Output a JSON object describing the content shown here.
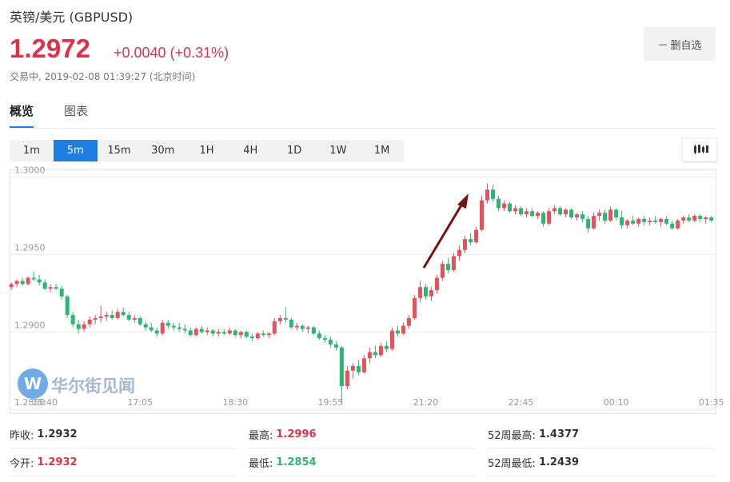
{
  "header": {
    "title": "英镑/美元 (GBPUSD)",
    "price": "1.2972",
    "change": "+0.0040",
    "change_pct": "(+0.31%)",
    "status": "交易中, 2019-02-08 01:39:27 (北京时间)",
    "button": "删自选"
  },
  "tabs": {
    "items": [
      "概览",
      "图表"
    ],
    "active": 0
  },
  "intervals": {
    "items": [
      "1m",
      "5m",
      "15m",
      "30m",
      "1H",
      "4H",
      "1D",
      "1W",
      "1M"
    ],
    "active": 1
  },
  "watermark": "华尔街见闻",
  "chart_data": {
    "type": "candlestick",
    "up_color": "#e8505b",
    "down_color": "#2bb673",
    "grid": true,
    "ylim": [
      1.2847,
      1.3005
    ],
    "yticks": [
      {
        "value": 1.3,
        "label": "1.3000"
      },
      {
        "value": 1.295,
        "label": "1.2950"
      },
      {
        "value": 1.29,
        "label": "1.2900"
      },
      {
        "value": 1.285,
        "label": "1.2850"
      }
    ],
    "xlim": [
      -0.3,
      125.9
    ],
    "xticks": [
      {
        "value": 6,
        "label": "15:40"
      },
      {
        "value": 23,
        "label": "17:05"
      },
      {
        "value": 40,
        "label": "18:30"
      },
      {
        "value": 57,
        "label": "19:55"
      },
      {
        "value": 74,
        "label": "21:20"
      },
      {
        "value": 91,
        "label": "22:45"
      },
      {
        "value": 108,
        "label": "00:10"
      },
      {
        "value": 125,
        "label": "01:35"
      }
    ],
    "ohlc": [
      [
        1.2929,
        1.2932,
        1.2927,
        1.2931
      ],
      [
        1.2931,
        1.2934,
        1.2929,
        1.2933
      ],
      [
        1.2933,
        1.2935,
        1.293,
        1.2931
      ],
      [
        1.2931,
        1.2936,
        1.293,
        1.2935
      ],
      [
        1.2935,
        1.2939,
        1.2933,
        1.2934
      ],
      [
        1.2934,
        1.2937,
        1.293,
        1.2932
      ],
      [
        1.2932,
        1.2934,
        1.2927,
        1.2928
      ],
      [
        1.2928,
        1.2931,
        1.2926,
        1.2929
      ],
      [
        1.2929,
        1.2931,
        1.2927,
        1.2928
      ],
      [
        1.2928,
        1.293,
        1.2921,
        1.2923
      ],
      [
        1.2923,
        1.2924,
        1.2909,
        1.2911
      ],
      [
        1.2911,
        1.2913,
        1.2903,
        1.2905
      ],
      [
        1.2905,
        1.2908,
        1.2899,
        1.2902
      ],
      [
        1.2902,
        1.2907,
        1.29,
        1.2905
      ],
      [
        1.2905,
        1.291,
        1.2903,
        1.2908
      ],
      [
        1.2908,
        1.2911,
        1.2905,
        1.2909
      ],
      [
        1.2909,
        1.2917,
        1.2906,
        1.291
      ],
      [
        1.291,
        1.2913,
        1.2907,
        1.2911
      ],
      [
        1.2911,
        1.2914,
        1.2908,
        1.2909
      ],
      [
        1.2909,
        1.2915,
        1.2908,
        1.2913
      ],
      [
        1.2913,
        1.2916,
        1.291,
        1.2911
      ],
      [
        1.2911,
        1.2913,
        1.2907,
        1.2908
      ],
      [
        1.2908,
        1.2911,
        1.2906,
        1.2909
      ],
      [
        1.2909,
        1.291,
        1.2904,
        1.2905
      ],
      [
        1.2905,
        1.2907,
        1.2901,
        1.2903
      ],
      [
        1.2903,
        1.2906,
        1.29,
        1.2901
      ],
      [
        1.2901,
        1.2903,
        1.2897,
        1.2899
      ],
      [
        1.2899,
        1.2908,
        1.2898,
        1.2906
      ],
      [
        1.2906,
        1.2908,
        1.2902,
        1.2904
      ],
      [
        1.2904,
        1.2906,
        1.2901,
        1.2903
      ],
      [
        1.2903,
        1.2906,
        1.29,
        1.2902
      ],
      [
        1.2902,
        1.2905,
        1.2899,
        1.2901
      ],
      [
        1.2901,
        1.2903,
        1.2897,
        1.2898
      ],
      [
        1.2898,
        1.2903,
        1.2897,
        1.2902
      ],
      [
        1.2902,
        1.2904,
        1.2899,
        1.29
      ],
      [
        1.29,
        1.2903,
        1.2898,
        1.2901
      ],
      [
        1.2901,
        1.2902,
        1.2897,
        1.2899
      ],
      [
        1.2899,
        1.2902,
        1.2897,
        1.29
      ],
      [
        1.29,
        1.2902,
        1.2898,
        1.2899
      ],
      [
        1.2899,
        1.2903,
        1.2898,
        1.2901
      ],
      [
        1.2901,
        1.2902,
        1.2897,
        1.2898
      ],
      [
        1.2898,
        1.2901,
        1.2896,
        1.29
      ],
      [
        1.29,
        1.2901,
        1.2896,
        1.2897
      ],
      [
        1.2897,
        1.2899,
        1.2894,
        1.2896
      ],
      [
        1.2896,
        1.29,
        1.2895,
        1.2899
      ],
      [
        1.2899,
        1.2901,
        1.2897,
        1.2898
      ],
      [
        1.2898,
        1.29,
        1.2896,
        1.2899
      ],
      [
        1.2899,
        1.2909,
        1.2898,
        1.2907
      ],
      [
        1.2907,
        1.2911,
        1.2905,
        1.2909
      ],
      [
        1.2909,
        1.2916,
        1.2906,
        1.2908
      ],
      [
        1.2908,
        1.2909,
        1.2902,
        1.2903
      ],
      [
        1.2903,
        1.2906,
        1.2901,
        1.2904
      ],
      [
        1.2904,
        1.2905,
        1.29,
        1.2902
      ],
      [
        1.2902,
        1.2904,
        1.2899,
        1.2903
      ],
      [
        1.2903,
        1.2904,
        1.2898,
        1.2899
      ],
      [
        1.2899,
        1.2901,
        1.2895,
        1.2896
      ],
      [
        1.2896,
        1.2898,
        1.2893,
        1.2895
      ],
      [
        1.2895,
        1.2897,
        1.289,
        1.2892
      ],
      [
        1.2892,
        1.2894,
        1.2888,
        1.289
      ],
      [
        1.289,
        1.2891,
        1.2854,
        1.2865
      ],
      [
        1.2865,
        1.2878,
        1.2863,
        1.2875
      ],
      [
        1.2875,
        1.288,
        1.287,
        1.2878
      ],
      [
        1.2878,
        1.2882,
        1.2872,
        1.2874
      ],
      [
        1.2874,
        1.2885,
        1.2873,
        1.2883
      ],
      [
        1.2883,
        1.289,
        1.288,
        1.2887
      ],
      [
        1.2887,
        1.2891,
        1.2883,
        1.2885
      ],
      [
        1.2885,
        1.2893,
        1.2884,
        1.2891
      ],
      [
        1.2891,
        1.2894,
        1.2887,
        1.2889
      ],
      [
        1.2889,
        1.2903,
        1.2888,
        1.2901
      ],
      [
        1.2901,
        1.2904,
        1.2897,
        1.2899
      ],
      [
        1.2899,
        1.2906,
        1.2898,
        1.2904
      ],
      [
        1.2904,
        1.2911,
        1.2902,
        1.2909
      ],
      [
        1.2909,
        1.2924,
        1.2908,
        1.2922
      ],
      [
        1.2922,
        1.2933,
        1.2919,
        1.2929
      ],
      [
        1.2929,
        1.2931,
        1.2921,
        1.2923
      ],
      [
        1.2923,
        1.2929,
        1.292,
        1.2927
      ],
      [
        1.2927,
        1.2937,
        1.2925,
        1.2935
      ],
      [
        1.2935,
        1.2946,
        1.2933,
        1.2944
      ],
      [
        1.2944,
        1.2948,
        1.2938,
        1.294
      ],
      [
        1.294,
        1.2951,
        1.2939,
        1.2949
      ],
      [
        1.2949,
        1.2956,
        1.2946,
        1.2953
      ],
      [
        1.2953,
        1.2962,
        1.2951,
        1.296
      ],
      [
        1.296,
        1.2964,
        1.2956,
        1.2958
      ],
      [
        1.2958,
        1.2968,
        1.2957,
        1.2966
      ],
      [
        1.2966,
        1.2988,
        1.2965,
        1.2985
      ],
      [
        1.2985,
        1.2996,
        1.2983,
        1.2992
      ],
      [
        1.2992,
        1.2995,
        1.2984,
        1.2986
      ],
      [
        1.2986,
        1.2988,
        1.2978,
        1.298
      ],
      [
        1.298,
        1.2985,
        1.2978,
        1.2983
      ],
      [
        1.2983,
        1.2984,
        1.2977,
        1.2978
      ],
      [
        1.2978,
        1.2982,
        1.2976,
        1.298
      ],
      [
        1.298,
        1.2981,
        1.2975,
        1.2976
      ],
      [
        1.2976,
        1.298,
        1.2974,
        1.2978
      ],
      [
        1.2978,
        1.298,
        1.2974,
        1.2975
      ],
      [
        1.2975,
        1.2978,
        1.2973,
        1.2977
      ],
      [
        1.2977,
        1.2978,
        1.2968,
        1.297
      ],
      [
        1.297,
        1.298,
        1.2969,
        1.2978
      ],
      [
        1.2978,
        1.2982,
        1.2976,
        1.298
      ],
      [
        1.298,
        1.2981,
        1.2975,
        1.2976
      ],
      [
        1.2976,
        1.298,
        1.2974,
        1.2979
      ],
      [
        1.2979,
        1.298,
        1.2973,
        1.2974
      ],
      [
        1.2974,
        1.2977,
        1.2972,
        1.2976
      ],
      [
        1.2976,
        1.2978,
        1.2971,
        1.2973
      ],
      [
        1.2973,
        1.2975,
        1.2964,
        1.2967
      ],
      [
        1.2967,
        1.2977,
        1.2966,
        1.2975
      ],
      [
        1.2975,
        1.2979,
        1.2972,
        1.2977
      ],
      [
        1.2977,
        1.2979,
        1.297,
        1.2972
      ],
      [
        1.2972,
        1.2981,
        1.2971,
        1.2979
      ],
      [
        1.2979,
        1.298,
        1.2972,
        1.2974
      ],
      [
        1.2974,
        1.2978,
        1.2967,
        1.2969
      ],
      [
        1.2969,
        1.2973,
        1.2967,
        1.2972
      ],
      [
        1.2972,
        1.2975,
        1.2969,
        1.297
      ],
      [
        1.297,
        1.2974,
        1.2968,
        1.2973
      ],
      [
        1.2973,
        1.2975,
        1.2969,
        1.2971
      ],
      [
        1.2971,
        1.2974,
        1.2969,
        1.2972
      ],
      [
        1.2972,
        1.2975,
        1.297,
        1.2971
      ],
      [
        1.2971,
        1.2974,
        1.2968,
        1.2973
      ],
      [
        1.2973,
        1.2975,
        1.2969,
        1.297
      ],
      [
        1.297,
        1.2972,
        1.2966,
        1.2967
      ],
      [
        1.2967,
        1.2973,
        1.2966,
        1.2972
      ],
      [
        1.2972,
        1.2975,
        1.297,
        1.2974
      ],
      [
        1.2974,
        1.2976,
        1.2971,
        1.2972
      ],
      [
        1.2972,
        1.2976,
        1.2971,
        1.2975
      ],
      [
        1.2975,
        1.2976,
        1.2971,
        1.2973
      ],
      [
        1.2973,
        1.2975,
        1.297,
        1.2974
      ],
      [
        1.2974,
        1.2975,
        1.2971,
        1.2972
      ]
    ]
  },
  "stats": {
    "rows": [
      [
        [
          "昨收:",
          "1.2932"
        ],
        [
          "最高:",
          "1.2996"
        ],
        [
          "52周最高:",
          "1.4377"
        ]
      ],
      [
        [
          "今开:",
          "1.2932"
        ],
        [
          "最低:",
          "1.2854"
        ],
        [
          "52周最低:",
          "1.2439"
        ]
      ]
    ]
  }
}
